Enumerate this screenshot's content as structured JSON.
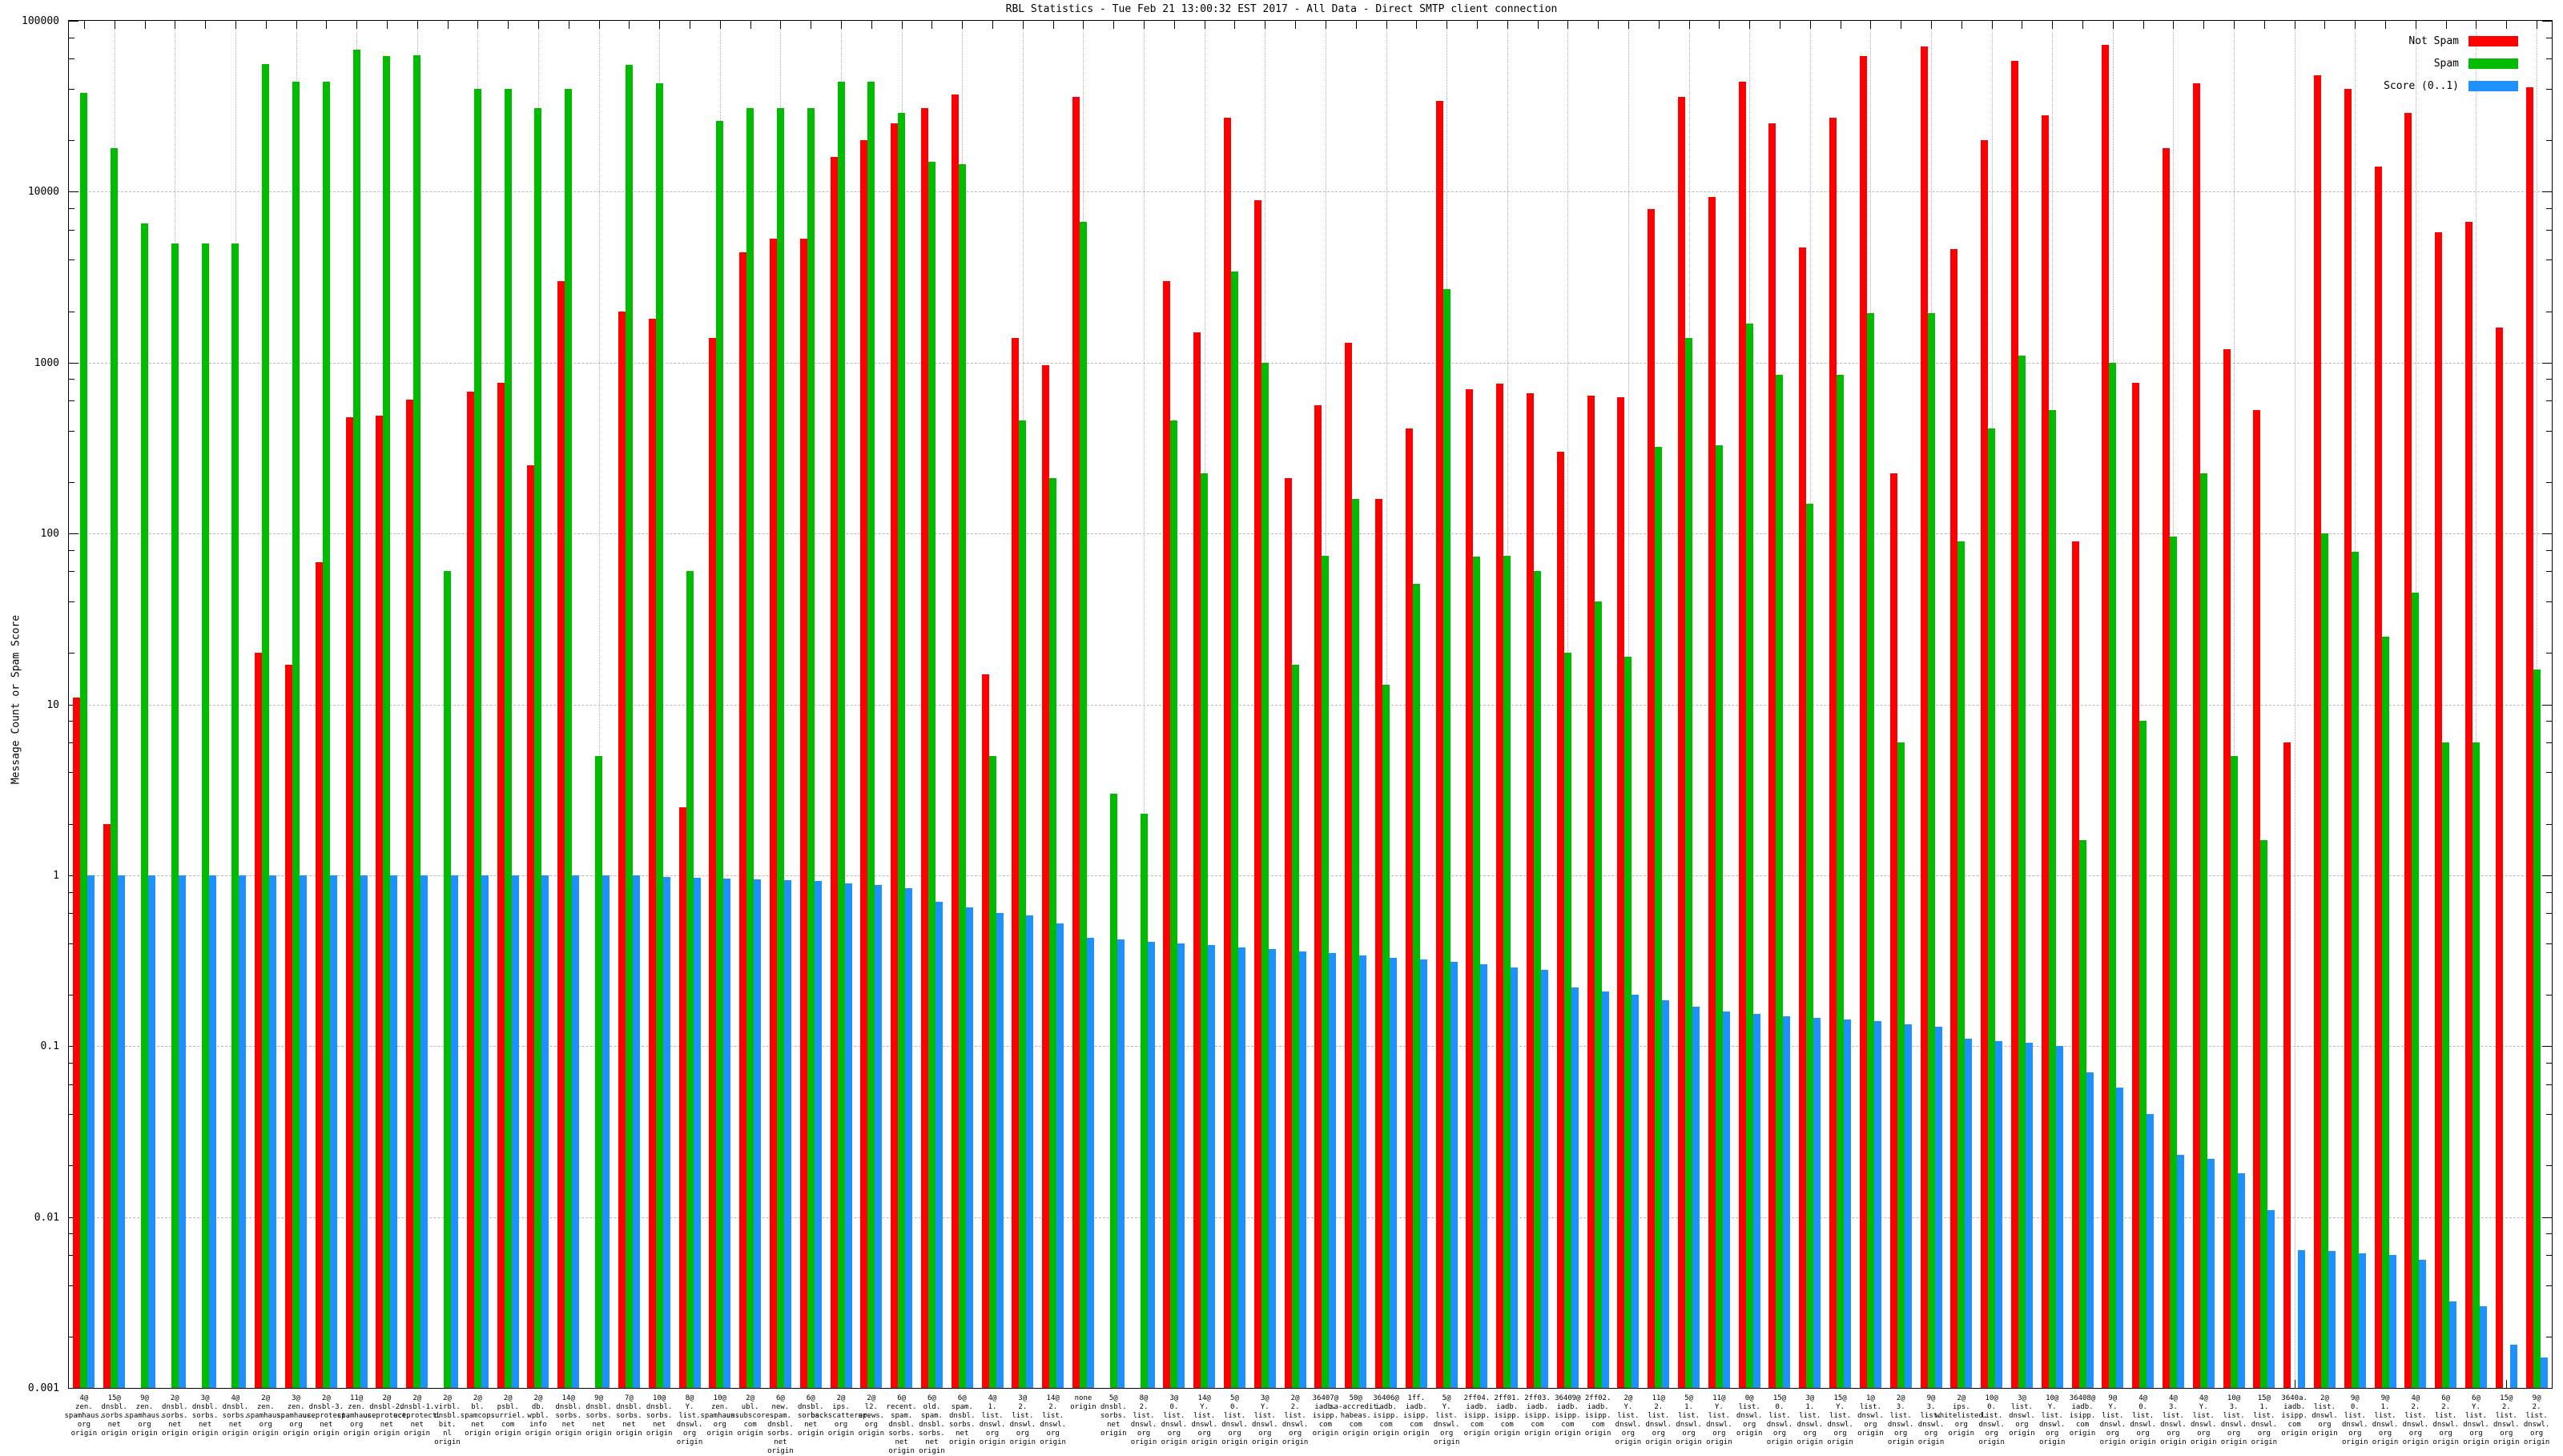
{
  "title": "RBL Statistics - Tue Feb 21 13:00:32 EST 2017 - All Data - Direct SMTP client connection",
  "y_axis": {
    "label": "Message Count or Spam Score",
    "ticks": [
      "100000",
      "10000",
      "1000",
      "100",
      "10",
      "1",
      "0.1",
      "0.01",
      "0.001"
    ]
  },
  "chart_data": {
    "type": "bar",
    "log_scale": true,
    "ylim": [
      0.001,
      100000
    ],
    "grid": true,
    "legend_position": "top-right",
    "xlabel": "",
    "ylabel": "Message Count or Spam Score",
    "categories": [
      "4@ zen. spamhaus. org origin",
      "15@ dnsbl. sorbs. net origin",
      "9@ zen. spamhaus. org origin",
      "2@ dnsbl. sorbs. net origin",
      "3@ dnsbl. sorbs. net origin",
      "4@ dnsbl. sorbs. net origin",
      "2@ zen. spamhaus. org origin",
      "3@ zen. spamhaus. org origin",
      "2@ dnsbl-3. uceprotect. net origin",
      "11@ zen. spamhaus. org origin",
      "2@ dnsbl-2. uceprotect. net origin",
      "2@ dnsbl-1. uceprotect. net origin",
      "2@ virbl. dnsbl. bit. nl origin",
      "2@ bl. spamcop. net origin",
      "2@ psbl. surriel. com origin",
      "2@ db. wpbl. info origin",
      "14@ dnsbl. sorbs. net origin",
      "9@ dnsbl. sorbs. net origin",
      "7@ dnsbl. sorbs. net origin",
      "10@ dnsbl. sorbs. net origin",
      "8@ Y. list. dnswl. org origin",
      "10@ zen. spamhaus. org origin",
      "2@ ubl. unsubscore. com origin",
      "6@ new. spam. dnsbl. sorbs. net origin",
      "6@ dnsbl. sorbs. net origin",
      "2@ ips. backscatterer. org origin",
      "2@ l2. apews. org origin",
      "6@ recent. spam. dnsbl. sorbs. net origin",
      "6@ old. spam. dnsbl. sorbs. net origin",
      "6@ spam. dnsbl. sorbs. net origin",
      "4@ 1. list. dnswl. org origin",
      "3@ 2. list. dnswl. org origin",
      "14@ 2. list. dnswl. org origin",
      "none origin",
      "5@ dnsbl. sorbs. net origin",
      "8@ 2. list. dnswl. org origin",
      "3@ 0. list. dnswl. org origin",
      "14@ Y. list. dnswl. org origin",
      "5@ 0. list. dnswl. org origin",
      "3@ Y. list. dnswl. org origin",
      "2@ 2. list. dnswl. org origin",
      "36407@ iadb. isipp. com origin",
      "50@ sa-accredit. habeas. com origin",
      "36406@ iadb. isipp. com origin",
      "1ff. iadb. isipp. com origin",
      "5@ Y. list. dnswl. org origin",
      "2ff04. iadb. isipp. com origin",
      "2ff01. iadb. isipp. com origin",
      "2ff03. iadb. isipp. com origin",
      "36409@ iadb. isipp. com origin",
      "2ff02. iadb. isipp. com origin",
      "2@ Y. list. dnswl. org origin",
      "11@ 2. list. dnswl. org origin",
      "5@ 1. list. dnswl. org origin",
      "11@ Y. list. dnswl. org origin",
      "0@ list. dnswl. org origin",
      "15@ 0. list. dnswl. org origin",
      "3@ 1. list. dnswl. org origin",
      "15@ Y. list. dnswl. org origin",
      "1@ list. dnswl. org origin",
      "2@ 3. list. dnswl. org origin",
      "9@ 3. list. dnswl. org origin",
      "2@ ips. whitelisted. org origin",
      "10@ 0. list. dnswl. org origin",
      "3@ list. dnswl. org origin",
      "10@ Y. list. dnswl. org origin",
      "36408@ iadb. isipp. com origin",
      "9@ Y. list. dnswl. org origin",
      "4@ 0. list. dnswl. org origin",
      "4@ 3. list. dnswl. org origin",
      "4@ Y. list. dnswl. org origin",
      "10@ 3. list. dnswl. org origin",
      "15@ 1. list. dnswl. org origin",
      "3640a. iadb. isipp. com origin",
      "2@ list. dnswl. org origin",
      "9@ 0. list. dnswl. org origin",
      "9@ 1. list. dnswl. org origin",
      "4@ 2. list. dnswl. org origin",
      "6@ 2. list. dnswl. org origin",
      "6@ Y. list. dnswl. org origin",
      "15@ 2. list. dnswl. org origin",
      "9@ 2. list. dnswl. org origin"
    ],
    "series": [
      {
        "name": "Not Spam",
        "color": "#ff0000",
        "values": [
          11,
          2,
          0,
          0,
          0,
          0,
          20,
          17,
          68,
          480,
          490,
          610,
          0,
          680,
          760,
          250,
          3000,
          0,
          2000,
          1800,
          2.5,
          1400,
          4400,
          5300,
          5300,
          16000,
          20000,
          25000,
          31000,
          37000,
          15,
          1400,
          970,
          36000,
          0,
          0,
          3000,
          1500,
          27000,
          8900,
          210,
          560,
          1300,
          160,
          410,
          34000,
          700,
          750,
          660,
          300,
          640,
          630,
          7900,
          36000,
          9300,
          44000,
          25000,
          4700,
          27000,
          62000,
          225,
          71000,
          4600,
          20000,
          58000,
          28000,
          90,
          72000,
          760,
          18000,
          43000,
          1200,
          525,
          6,
          48000,
          40000,
          14000,
          29000,
          5800,
          6700,
          1600,
          41000
        ]
      },
      {
        "name": "Spam",
        "color": "#00bb00",
        "values": [
          38000,
          18000,
          6500,
          5000,
          5000,
          5000,
          56000,
          44000,
          44000,
          68000,
          62000,
          63000,
          60,
          40000,
          40000,
          31000,
          40000,
          5,
          55000,
          43000,
          60,
          26000,
          31000,
          31000,
          31000,
          44000,
          44000,
          29000,
          15000,
          14500,
          5,
          460,
          210,
          6700,
          3,
          2.3,
          460,
          225,
          3400,
          1000,
          17,
          74,
          160,
          13,
          51,
          2700,
          73,
          74,
          60,
          20,
          40,
          19,
          320,
          1400,
          330,
          1700,
          850,
          150,
          850,
          1950,
          6,
          1950,
          90,
          410,
          1100,
          530,
          1.6,
          1000,
          8,
          96,
          225,
          5,
          1.6,
          0,
          100,
          78,
          25,
          45,
          6,
          6,
          0,
          16
        ]
      },
      {
        "name": "Score (0..1)",
        "color": "#1e90ff",
        "values": [
          1,
          1,
          1,
          1,
          1,
          1,
          1,
          1,
          1,
          1,
          1,
          1,
          1,
          1,
          1,
          1,
          1,
          1,
          1,
          0.98,
          0.97,
          0.96,
          0.95,
          0.94,
          0.93,
          0.9,
          0.88,
          0.84,
          0.7,
          0.65,
          0.6,
          0.58,
          0.52,
          0.43,
          0.42,
          0.41,
          0.4,
          0.39,
          0.38,
          0.37,
          0.36,
          0.35,
          0.34,
          0.33,
          0.32,
          0.31,
          0.3,
          0.29,
          0.28,
          0.22,
          0.21,
          0.2,
          0.185,
          0.17,
          0.16,
          0.155,
          0.15,
          0.147,
          0.143,
          0.14,
          0.134,
          0.13,
          0.11,
          0.107,
          0.105,
          0.1,
          0.07,
          0.057,
          0.04,
          0.023,
          0.022,
          0.018,
          0.011,
          0.0064,
          0.0063,
          0.0061,
          0.006,
          0.0056,
          0.0032,
          0.003,
          0.0018,
          0.0015
        ]
      }
    ]
  }
}
